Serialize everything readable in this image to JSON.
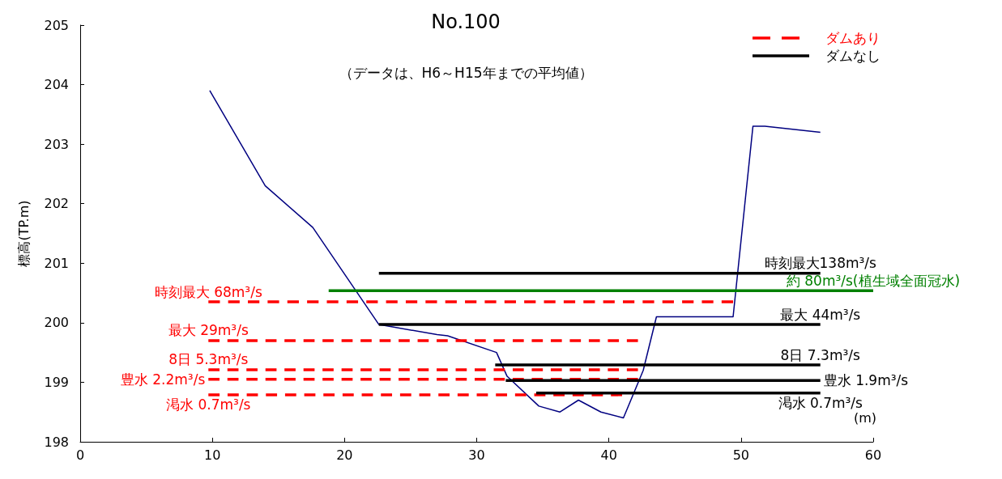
{
  "chart_data": {
    "type": "line",
    "title": "No.100",
    "subtitle": "（データは、H6～H15年までの平均値）",
    "xlabel": "(m)",
    "ylabel": "標高(TP.m)",
    "series": [
      {
        "color": "#000080",
        "x": [
          9.8,
          14.0,
          17.6,
          22.6,
          27.0,
          27.8,
          31.5,
          32.3,
          34.7,
          36.3,
          37.7,
          39.4,
          41.1,
          42.6,
          43.6,
          49.4,
          50.9,
          51.8,
          56.0
        ],
        "values": [
          203.9,
          202.3,
          201.6,
          199.97,
          199.8,
          199.78,
          199.5,
          199.1,
          198.6,
          198.5,
          198.7,
          198.5,
          198.4,
          199.2,
          200.1,
          200.1,
          203.3,
          203.3,
          203.2
        ]
      },
      {
        "name": "時刻最大 68m³/s",
        "color": "#ff0000",
        "line_style": "dashed",
        "x": [
          9.7,
          49.4
        ],
        "values": [
          200.35,
          200.35
        ]
      },
      {
        "name": "最大 29m³/s",
        "color": "#ff0000",
        "line_style": "dashed",
        "x": [
          9.7,
          42.2
        ],
        "values": [
          199.7,
          199.7
        ]
      },
      {
        "name": "8日 5.3m³/s",
        "color": "#ff0000",
        "line_style": "dashed",
        "x": [
          9.7,
          42.2
        ],
        "values": [
          199.21,
          199.21
        ]
      },
      {
        "name": "豊水 2.2m³/s",
        "color": "#ff0000",
        "line_style": "dashed",
        "x": [
          9.7,
          42.2
        ],
        "values": [
          199.05,
          199.05
        ]
      },
      {
        "name": "渇水 0.7m³/s",
        "color": "#ff0000",
        "line_style": "dashed",
        "x": [
          9.7,
          41.0
        ],
        "values": [
          198.79,
          198.79
        ]
      },
      {
        "name": "時刻最大138m³/s",
        "color": "#000000",
        "x": [
          22.6,
          56.0
        ],
        "values": [
          200.83,
          200.83
        ]
      },
      {
        "name": "最大 44m³/s",
        "color": "#000000",
        "x": [
          22.6,
          56.0
        ],
        "values": [
          199.97,
          199.97
        ]
      },
      {
        "name": "8日 7.3m³/s",
        "color": "#000000",
        "x": [
          31.4,
          56.0
        ],
        "values": [
          199.29,
          199.29
        ]
      },
      {
        "name": "豊水 1.9m³/s",
        "color": "#000000",
        "x": [
          32.2,
          56.0
        ],
        "values": [
          199.03,
          199.03
        ]
      },
      {
        "name": "渇水 0.7m³/s",
        "color": "#000000",
        "x": [
          34.5,
          56.0
        ],
        "values": [
          198.82,
          198.82
        ]
      },
      {
        "name": "約 80m³/s(植生域全面冠水)",
        "color": "#008000",
        "x": [
          18.8,
          60
        ],
        "values": [
          200.54,
          200.54
        ]
      }
    ],
    "annotations": [
      "ダムあり",
      "ダムなし"
    ],
    "xlim": [
      0,
      60
    ],
    "xticks": [
      0,
      10,
      20,
      30,
      40,
      50,
      60
    ],
    "ylim": [
      198,
      205
    ],
    "yticks": [
      198,
      199,
      200,
      201,
      202,
      203,
      204,
      205
    ],
    "grid": false,
    "marker": "none"
  }
}
